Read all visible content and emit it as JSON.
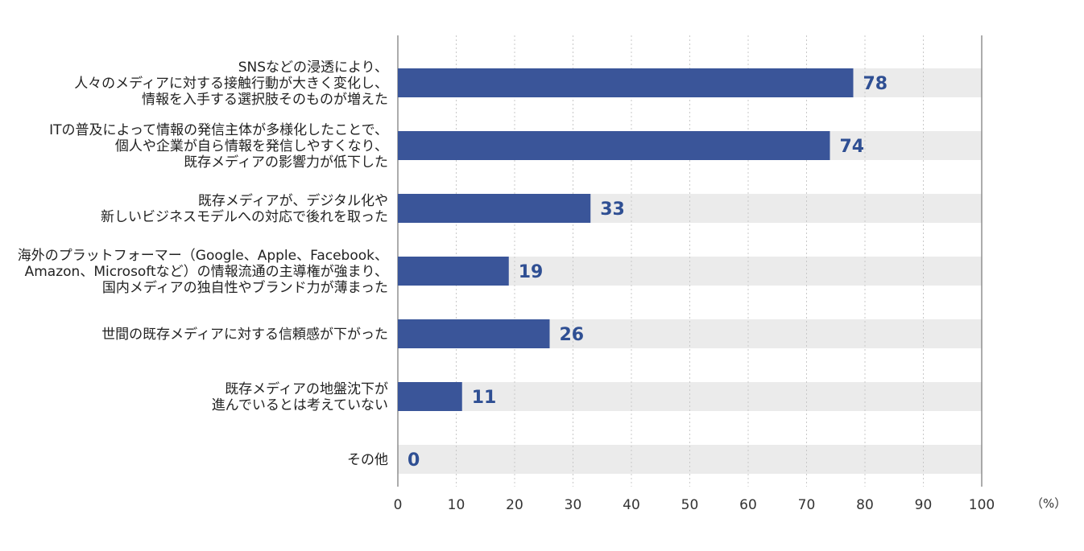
{
  "chart_data": {
    "type": "bar",
    "orientation": "horizontal",
    "categories": [
      [
        "SNSなどの浸透により、",
        "人々のメディアに対する接触行動が大きく変化し、",
        "情報を入手する選択肢そのものが増えた"
      ],
      [
        "ITの普及によって情報の発信主体が多様化したことで、",
        "個人や企業が自ら情報を発信しやすくなり、",
        "既存メディアの影響力が低下した"
      ],
      [
        "既存メディアが、デジタル化や",
        "新しいビジネスモデルへの対応で後れを取った"
      ],
      [
        "海外のプラットフォーマー（Google、Apple、Facebook、",
        "Amazon、Microsoftなど）の情報流通の主導権が強まり、",
        "国内メディアの独自性やブランド力が薄まった"
      ],
      [
        "世間の既存メディアに対する信頼感が下がった"
      ],
      [
        "既存メディアの地盤沈下が",
        "進んでいるとは考えていない"
      ],
      [
        "その他"
      ]
    ],
    "values": [
      78,
      74,
      33,
      19,
      26,
      11,
      0
    ],
    "value_labels": [
      "78",
      "74",
      "33",
      "19",
      "26",
      "11",
      "0"
    ],
    "xlim": [
      0,
      100
    ],
    "xticks": [
      0,
      10,
      20,
      30,
      40,
      50,
      60,
      70,
      80,
      90,
      100
    ],
    "xtick_labels": [
      "0",
      "10",
      "20",
      "30",
      "40",
      "50",
      "60",
      "70",
      "80",
      "90",
      "100"
    ],
    "unit": "（%）",
    "grid": true,
    "colors": {
      "bar": "#3a5599",
      "track": "#ebebeb",
      "value_text": "#2f4f93",
      "grid": "#c8c8c8",
      "axis": "#888888"
    }
  }
}
